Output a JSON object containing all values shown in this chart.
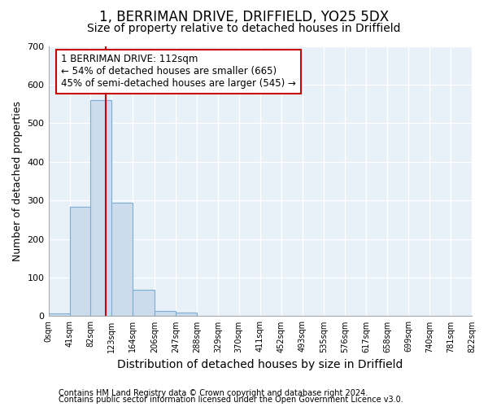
{
  "title1": "1, BERRIMAN DRIVE, DRIFFIELD, YO25 5DX",
  "title2": "Size of property relative to detached houses in Driffield",
  "xlabel": "Distribution of detached houses by size in Driffield",
  "ylabel": "Number of detached properties",
  "footer1": "Contains HM Land Registry data © Crown copyright and database right 2024.",
  "footer2": "Contains public sector information licensed under the Open Government Licence v3.0.",
  "bin_edges": [
    0,
    41,
    82,
    123,
    164,
    206,
    247,
    288,
    329,
    370,
    411,
    452,
    493,
    535,
    576,
    617,
    658,
    699,
    740,
    781,
    822
  ],
  "bar_heights": [
    8,
    283,
    560,
    293,
    68,
    13,
    9,
    0,
    0,
    0,
    0,
    0,
    0,
    0,
    0,
    0,
    0,
    0,
    0,
    0
  ],
  "bar_color": "#ccdcec",
  "bar_edge_color": "#7aaed4",
  "property_size": 112,
  "red_line_color": "#cc0000",
  "annotation_line1": "1 BERRIMAN DRIVE: 112sqm",
  "annotation_line2": "← 54% of detached houses are smaller (665)",
  "annotation_line3": "45% of semi-detached houses are larger (545) →",
  "annotation_box_color": "#ffffff",
  "annotation_box_edge": "#cc0000",
  "ylim": [
    0,
    700
  ],
  "yticks": [
    0,
    100,
    200,
    300,
    400,
    500,
    600,
    700
  ],
  "plot_bg_color": "#e8f0f8",
  "fig_bg_color": "#ffffff",
  "grid_color": "#ffffff",
  "title1_fontsize": 12,
  "title2_fontsize": 10,
  "xlabel_fontsize": 10,
  "ylabel_fontsize": 9,
  "annotation_fontsize": 8.5,
  "footer_fontsize": 7
}
